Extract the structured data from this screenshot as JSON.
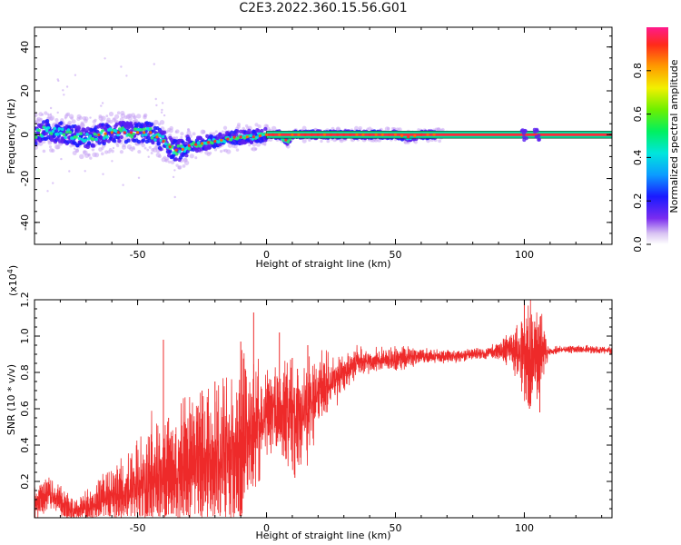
{
  "title": "C2E3.2022.360.15.56.G01",
  "chart_data": [
    {
      "type": "heatmap",
      "xlabel": "Height of straight line (km)",
      "ylabel": "Frequency (Hz)",
      "xlim": [
        -90,
        134
      ],
      "ylim": [
        -50,
        49
      ],
      "xticks": [
        -50,
        0,
        50,
        100
      ],
      "yticks": [
        -40,
        -20,
        0,
        20,
        40
      ],
      "ridge": [
        [
          -90,
          0
        ],
        [
          -85,
          2
        ],
        [
          -80,
          1
        ],
        [
          -75,
          0
        ],
        [
          -72,
          -1
        ],
        [
          -68,
          -2
        ],
        [
          -65,
          0
        ],
        [
          -60,
          1
        ],
        [
          -55,
          1
        ],
        [
          -50,
          1
        ],
        [
          -45,
          1
        ],
        [
          -40,
          -3
        ],
        [
          -36,
          -7
        ],
        [
          -33,
          -7
        ],
        [
          -30,
          -5
        ],
        [
          -25,
          -4
        ],
        [
          -20,
          -3
        ],
        [
          -15,
          -2
        ],
        [
          -12,
          -1
        ],
        [
          -8,
          -1
        ],
        [
          -5,
          -1
        ],
        [
          0,
          0
        ],
        [
          5,
          0
        ],
        [
          8,
          -3
        ],
        [
          10,
          0
        ],
        [
          20,
          0
        ],
        [
          40,
          0
        ],
        [
          50,
          0
        ],
        [
          55,
          -1
        ],
        [
          60,
          0
        ],
        [
          65,
          0
        ],
        [
          100,
          0
        ],
        [
          106,
          0
        ],
        [
          134,
          0
        ]
      ],
      "colorbar": {
        "label": "Normalized spectral amplitude",
        "range": [
          0,
          1
        ],
        "ticks": [
          "0.0",
          "0.2",
          "0.4",
          "0.6",
          "0.8"
        ]
      }
    },
    {
      "type": "line",
      "xlabel": "Height of straight line (km)",
      "ylabel": "SNR (10 * v/v)",
      "multiplier": "(x10",
      "multiplier_exp": "4",
      "multiplier_close": ")",
      "xlim": [
        -90,
        134
      ],
      "ylim": [
        0,
        1.2
      ],
      "xticks": [
        -50,
        0,
        50,
        100
      ],
      "yticks": [
        "0.2",
        "0.4",
        "0.6",
        "0.8",
        "1.0",
        "1.2"
      ],
      "color": "#ee2a2a",
      "trend": [
        [
          -90,
          0.08
        ],
        [
          -85,
          0.14
        ],
        [
          -80,
          0.08
        ],
        [
          -75,
          0.03
        ],
        [
          -70,
          0.05
        ],
        [
          -65,
          0.09
        ],
        [
          -60,
          0.12
        ],
        [
          -55,
          0.13
        ],
        [
          -50,
          0.16
        ],
        [
          -45,
          0.2
        ],
        [
          -40,
          0.22
        ],
        [
          -35,
          0.25
        ],
        [
          -30,
          0.28
        ],
        [
          -25,
          0.3
        ],
        [
          -20,
          0.32
        ],
        [
          -15,
          0.35
        ],
        [
          -10,
          0.42
        ],
        [
          -5,
          0.5
        ],
        [
          0,
          0.58
        ],
        [
          5,
          0.6
        ],
        [
          10,
          0.55
        ],
        [
          15,
          0.6
        ],
        [
          20,
          0.68
        ],
        [
          25,
          0.75
        ],
        [
          30,
          0.8
        ],
        [
          35,
          0.85
        ],
        [
          40,
          0.86
        ],
        [
          45,
          0.87
        ],
        [
          50,
          0.87
        ],
        [
          55,
          0.88
        ],
        [
          60,
          0.89
        ],
        [
          65,
          0.89
        ],
        [
          70,
          0.89
        ],
        [
          75,
          0.89
        ],
        [
          80,
          0.9
        ],
        [
          85,
          0.9
        ],
        [
          90,
          0.92
        ],
        [
          95,
          0.93
        ],
        [
          100,
          0.9
        ],
        [
          105,
          0.92
        ],
        [
          110,
          0.92
        ],
        [
          120,
          0.93
        ],
        [
          134,
          0.92
        ]
      ],
      "noise_amplitude": [
        [
          -90,
          0.08
        ],
        [
          -70,
          0.08
        ],
        [
          -55,
          0.18
        ],
        [
          -45,
          0.3
        ],
        [
          -35,
          0.32
        ],
        [
          -20,
          0.38
        ],
        [
          -10,
          0.45
        ],
        [
          -5,
          0.3
        ],
        [
          5,
          0.18
        ],
        [
          10,
          0.35
        ],
        [
          20,
          0.2
        ],
        [
          30,
          0.1
        ],
        [
          40,
          0.06
        ],
        [
          50,
          0.07
        ],
        [
          60,
          0.04
        ],
        [
          70,
          0.03
        ],
        [
          80,
          0.03
        ],
        [
          90,
          0.04
        ],
        [
          97,
          0.12
        ],
        [
          102,
          0.3
        ],
        [
          106,
          0.2
        ],
        [
          110,
          0.02
        ],
        [
          134,
          0.02
        ]
      ],
      "spikes": [
        [
          -40,
          0.98
        ],
        [
          -38,
          0.55
        ],
        [
          -25,
          0.7
        ],
        [
          -20,
          0.75
        ],
        [
          -10,
          0.97
        ],
        [
          -5,
          1.13
        ],
        [
          -3,
          0.2
        ],
        [
          5,
          1.02
        ],
        [
          10,
          0.88
        ],
        [
          11,
          0.22
        ],
        [
          12,
          0.82
        ],
        [
          16,
          0.95
        ],
        [
          100,
          1.2
        ],
        [
          102,
          0.6
        ],
        [
          104,
          1.08
        ],
        [
          106,
          0.58
        ]
      ]
    }
  ]
}
